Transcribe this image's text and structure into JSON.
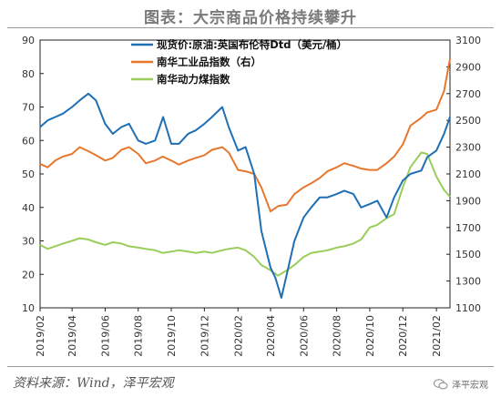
{
  "title": "图表：大宗商品价格持续攀升",
  "source": "资料来源：Wind，泽平宏观",
  "watermark": "泽平宏观",
  "colors": {
    "brent": "#1f6fb5",
    "nanhua_industrial": "#e8772e",
    "nanhua_coal": "#9acd59"
  },
  "chart_data": {
    "type": "line",
    "x_ticks": [
      "2019/02",
      "2019/04",
      "2019/06",
      "2019/08",
      "2019/10",
      "2019/12",
      "2020/02",
      "2020/04",
      "2020/06",
      "2020/08",
      "2020/10",
      "2020/12",
      "2021/02"
    ],
    "x_range": [
      "2019-02-01",
      "2021-02-26"
    ],
    "left_axis": {
      "ylim": [
        10,
        90
      ],
      "ticks": [
        10,
        20,
        30,
        40,
        50,
        60,
        70,
        80,
        90
      ]
    },
    "right_axis": {
      "ylim": [
        1100,
        3100
      ],
      "ticks": [
        1100,
        1300,
        1500,
        1700,
        1900,
        2100,
        2300,
        2500,
        2700,
        2900,
        3100
      ]
    },
    "legend_position": "top-center",
    "series": [
      {
        "name": "现货价:原油:英国布伦特Dtd（美元/桶）",
        "axis": "left",
        "color_key": "brent",
        "points": [
          [
            "2019-02-01",
            64
          ],
          [
            "2019-02-15",
            66
          ],
          [
            "2019-03-01",
            67
          ],
          [
            "2019-03-15",
            68
          ],
          [
            "2019-04-01",
            70
          ],
          [
            "2019-04-15",
            72
          ],
          [
            "2019-05-01",
            74
          ],
          [
            "2019-05-15",
            72
          ],
          [
            "2019-06-01",
            65
          ],
          [
            "2019-06-15",
            62
          ],
          [
            "2019-07-01",
            64
          ],
          [
            "2019-07-15",
            65
          ],
          [
            "2019-08-01",
            60
          ],
          [
            "2019-08-15",
            59
          ],
          [
            "2019-09-01",
            60
          ],
          [
            "2019-09-16",
            67
          ],
          [
            "2019-10-01",
            59
          ],
          [
            "2019-10-15",
            59
          ],
          [
            "2019-11-01",
            62
          ],
          [
            "2019-11-15",
            63
          ],
          [
            "2019-12-01",
            65
          ],
          [
            "2019-12-15",
            67
          ],
          [
            "2020-01-03",
            70
          ],
          [
            "2020-01-15",
            64
          ],
          [
            "2020-02-01",
            57
          ],
          [
            "2020-02-15",
            58
          ],
          [
            "2020-03-02",
            50
          ],
          [
            "2020-03-15",
            33
          ],
          [
            "2020-04-01",
            22
          ],
          [
            "2020-04-10",
            19
          ],
          [
            "2020-04-21",
            13
          ],
          [
            "2020-05-01",
            20
          ],
          [
            "2020-05-15",
            30
          ],
          [
            "2020-06-01",
            37
          ],
          [
            "2020-06-15",
            40
          ],
          [
            "2020-07-01",
            43
          ],
          [
            "2020-07-15",
            43
          ],
          [
            "2020-08-01",
            44
          ],
          [
            "2020-08-15",
            45
          ],
          [
            "2020-09-01",
            44
          ],
          [
            "2020-09-15",
            40
          ],
          [
            "2020-10-01",
            41
          ],
          [
            "2020-10-15",
            42
          ],
          [
            "2020-11-01",
            37
          ],
          [
            "2020-11-15",
            43
          ],
          [
            "2020-12-01",
            48
          ],
          [
            "2020-12-15",
            50
          ],
          [
            "2021-01-04",
            51
          ],
          [
            "2021-01-15",
            55
          ],
          [
            "2021-02-01",
            57
          ],
          [
            "2021-02-15",
            62
          ],
          [
            "2021-02-26",
            67
          ]
        ]
      },
      {
        "name": "南华工业品指数（右）",
        "axis": "right",
        "color_key": "nanhua_industrial",
        "points": [
          [
            "2019-02-01",
            2175
          ],
          [
            "2019-02-15",
            2150
          ],
          [
            "2019-03-01",
            2200
          ],
          [
            "2019-03-15",
            2230
          ],
          [
            "2019-04-01",
            2250
          ],
          [
            "2019-04-15",
            2300
          ],
          [
            "2019-05-01",
            2270
          ],
          [
            "2019-05-15",
            2240
          ],
          [
            "2019-06-01",
            2200
          ],
          [
            "2019-06-15",
            2220
          ],
          [
            "2019-07-01",
            2280
          ],
          [
            "2019-07-15",
            2300
          ],
          [
            "2019-08-01",
            2250
          ],
          [
            "2019-08-15",
            2180
          ],
          [
            "2019-09-01",
            2200
          ],
          [
            "2019-09-15",
            2230
          ],
          [
            "2019-10-01",
            2200
          ],
          [
            "2019-10-15",
            2170
          ],
          [
            "2019-11-01",
            2200
          ],
          [
            "2019-11-15",
            2220
          ],
          [
            "2019-12-01",
            2240
          ],
          [
            "2019-12-15",
            2280
          ],
          [
            "2020-01-03",
            2300
          ],
          [
            "2020-01-15",
            2260
          ],
          [
            "2020-02-01",
            2130
          ],
          [
            "2020-02-15",
            2120
          ],
          [
            "2020-03-02",
            2100
          ],
          [
            "2020-03-15",
            2000
          ],
          [
            "2020-04-01",
            1820
          ],
          [
            "2020-04-15",
            1860
          ],
          [
            "2020-05-01",
            1870
          ],
          [
            "2020-05-15",
            1950
          ],
          [
            "2020-06-01",
            2000
          ],
          [
            "2020-06-15",
            2030
          ],
          [
            "2020-07-01",
            2070
          ],
          [
            "2020-07-15",
            2120
          ],
          [
            "2020-08-01",
            2150
          ],
          [
            "2020-08-15",
            2180
          ],
          [
            "2020-09-01",
            2160
          ],
          [
            "2020-09-15",
            2140
          ],
          [
            "2020-10-01",
            2130
          ],
          [
            "2020-10-15",
            2130
          ],
          [
            "2020-11-01",
            2180
          ],
          [
            "2020-11-15",
            2230
          ],
          [
            "2020-12-01",
            2320
          ],
          [
            "2020-12-15",
            2460
          ],
          [
            "2021-01-04",
            2520
          ],
          [
            "2021-01-15",
            2560
          ],
          [
            "2021-02-01",
            2580
          ],
          [
            "2021-02-15",
            2720
          ],
          [
            "2021-02-26",
            2960
          ]
        ]
      },
      {
        "name": "南华动力煤指数",
        "axis": "right",
        "color_key": "nanhua_coal",
        "points": [
          [
            "2019-02-01",
            1570
          ],
          [
            "2019-02-15",
            1540
          ],
          [
            "2019-03-01",
            1560
          ],
          [
            "2019-03-15",
            1580
          ],
          [
            "2019-04-01",
            1600
          ],
          [
            "2019-04-15",
            1620
          ],
          [
            "2019-05-01",
            1610
          ],
          [
            "2019-05-15",
            1590
          ],
          [
            "2019-06-01",
            1570
          ],
          [
            "2019-06-15",
            1590
          ],
          [
            "2019-07-01",
            1580
          ],
          [
            "2019-07-15",
            1560
          ],
          [
            "2019-08-01",
            1550
          ],
          [
            "2019-08-15",
            1540
          ],
          [
            "2019-09-01",
            1530
          ],
          [
            "2019-09-15",
            1510
          ],
          [
            "2019-10-01",
            1520
          ],
          [
            "2019-10-15",
            1530
          ],
          [
            "2019-11-01",
            1520
          ],
          [
            "2019-11-15",
            1510
          ],
          [
            "2019-12-01",
            1520
          ],
          [
            "2019-12-15",
            1510
          ],
          [
            "2020-01-03",
            1530
          ],
          [
            "2020-01-15",
            1540
          ],
          [
            "2020-02-01",
            1550
          ],
          [
            "2020-02-15",
            1530
          ],
          [
            "2020-03-02",
            1480
          ],
          [
            "2020-03-15",
            1420
          ],
          [
            "2020-04-01",
            1380
          ],
          [
            "2020-04-15",
            1340
          ],
          [
            "2020-05-01",
            1380
          ],
          [
            "2020-05-15",
            1420
          ],
          [
            "2020-06-01",
            1480
          ],
          [
            "2020-06-15",
            1510
          ],
          [
            "2020-07-01",
            1520
          ],
          [
            "2020-07-15",
            1530
          ],
          [
            "2020-08-01",
            1550
          ],
          [
            "2020-08-15",
            1560
          ],
          [
            "2020-09-01",
            1580
          ],
          [
            "2020-09-15",
            1610
          ],
          [
            "2020-10-01",
            1700
          ],
          [
            "2020-10-15",
            1720
          ],
          [
            "2020-11-01",
            1770
          ],
          [
            "2020-11-15",
            1800
          ],
          [
            "2020-12-01",
            2000
          ],
          [
            "2020-12-15",
            2150
          ],
          [
            "2021-01-04",
            2260
          ],
          [
            "2021-01-15",
            2250
          ],
          [
            "2021-02-01",
            2080
          ],
          [
            "2021-02-15",
            1980
          ],
          [
            "2021-02-26",
            1930
          ]
        ]
      }
    ]
  }
}
